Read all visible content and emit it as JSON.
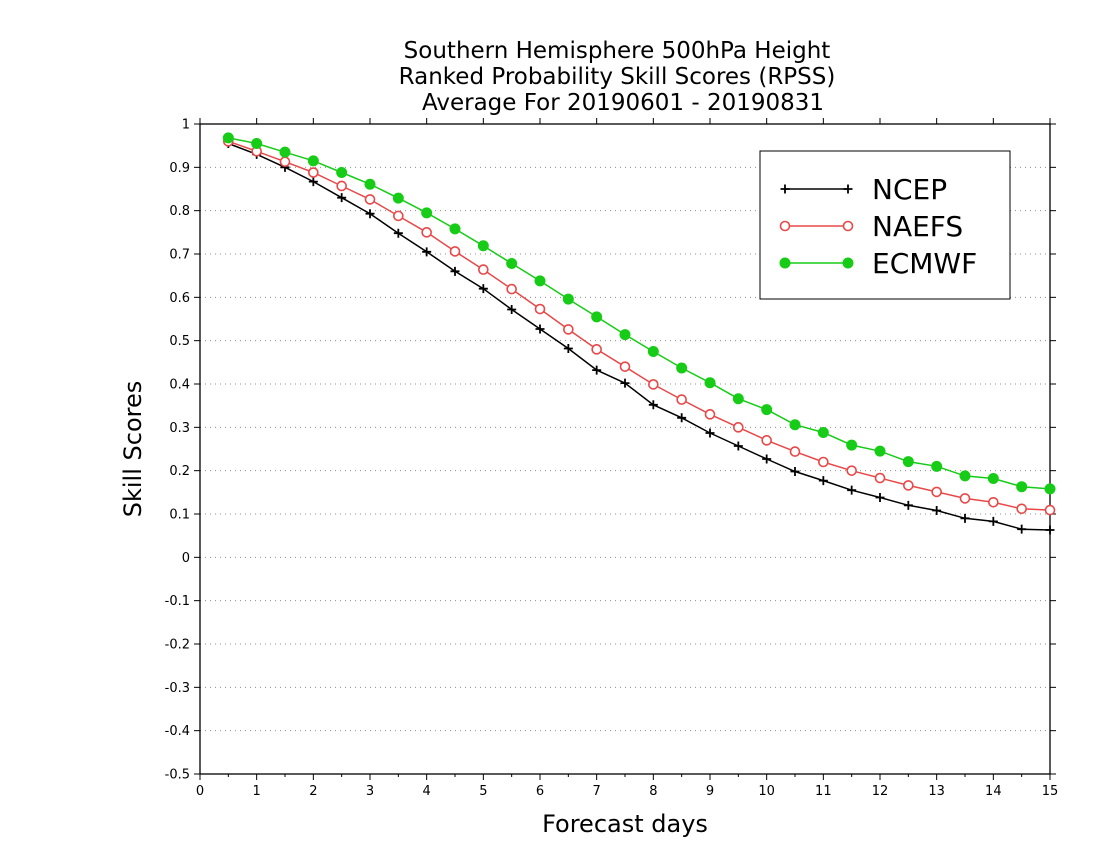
{
  "chart_data": {
    "type": "line",
    "title": [
      "Southern Hemisphere 500hPa Height",
      "Ranked Probability Skill Scores (RPSS)",
      "Average For 20190601 - 20190831"
    ],
    "xlabel": "Forecast days",
    "ylabel": "Skill Scores",
    "xlim": [
      0,
      15
    ],
    "ylim": [
      -0.5,
      1
    ],
    "xticks": [
      0,
      1,
      2,
      3,
      4,
      5,
      6,
      7,
      8,
      9,
      10,
      11,
      12,
      13,
      14,
      15
    ],
    "yticks": [
      -0.5,
      -0.4,
      -0.3,
      -0.2,
      -0.1,
      0,
      0.1,
      0.2,
      0.3,
      0.4,
      0.5,
      0.6,
      0.7,
      0.8,
      0.9,
      1
    ],
    "ytick_labels": [
      "-0.5",
      "-0.4",
      "-0.3",
      "-0.2",
      "-0.1",
      "0",
      "0.1",
      "0.2",
      "0.3",
      "0.4",
      "0.5",
      "0.6",
      "0.7",
      "0.8",
      "0.9",
      "1"
    ],
    "grid": "horizontal dotted",
    "legend_position": "top-right",
    "x": [
      0.5,
      1,
      1.5,
      2,
      2.5,
      3,
      3.5,
      4,
      4.5,
      5,
      5.5,
      6,
      6.5,
      7,
      7.5,
      8,
      8.5,
      9,
      9.5,
      10,
      10.5,
      11,
      11.5,
      12,
      12.5,
      13,
      13.5,
      14,
      14.5,
      15
    ],
    "series": [
      {
        "name": "NCEP",
        "color": "#000000",
        "marker": "plus",
        "values": [
          0.955,
          0.93,
          0.9,
          0.867,
          0.83,
          0.793,
          0.748,
          0.705,
          0.66,
          0.62,
          0.572,
          0.527,
          0.482,
          0.432,
          0.402,
          0.352,
          0.322,
          0.287,
          0.257,
          0.227,
          0.198,
          0.177,
          0.155,
          0.138,
          0.12,
          0.108,
          0.09,
          0.083,
          0.065,
          0.063
        ]
      },
      {
        "name": "NAEFS",
        "color": "#e84848",
        "marker": "open-circle",
        "values": [
          0.96,
          0.937,
          0.913,
          0.888,
          0.857,
          0.826,
          0.788,
          0.75,
          0.706,
          0.664,
          0.619,
          0.573,
          0.526,
          0.48,
          0.44,
          0.399,
          0.364,
          0.33,
          0.3,
          0.27,
          0.244,
          0.22,
          0.2,
          0.183,
          0.166,
          0.151,
          0.136,
          0.127,
          0.112,
          0.109
        ]
      },
      {
        "name": "ECMWF",
        "color": "#16cc16",
        "marker": "filled-circle",
        "values": [
          0.968,
          0.955,
          0.935,
          0.915,
          0.888,
          0.861,
          0.829,
          0.795,
          0.758,
          0.719,
          0.678,
          0.638,
          0.596,
          0.555,
          0.514,
          0.475,
          0.437,
          0.403,
          0.366,
          0.341,
          0.306,
          0.288,
          0.259,
          0.245,
          0.221,
          0.21,
          0.188,
          0.182,
          0.163,
          0.158
        ]
      }
    ]
  }
}
